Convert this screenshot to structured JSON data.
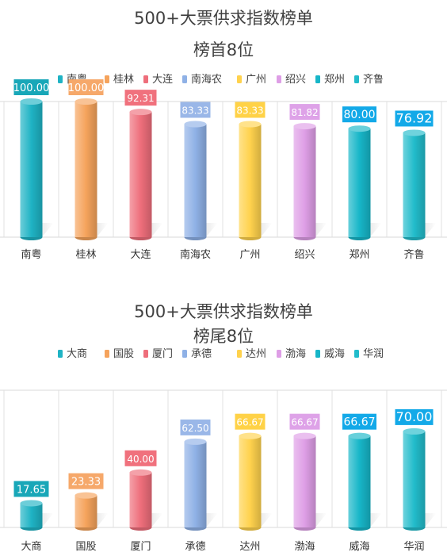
{
  "chart_data": [
    {
      "type": "bar",
      "title": "500+大票供求指数榜单",
      "subtitle": "榜首8位",
      "categories": [
        "南粤",
        "桂林",
        "大连",
        "南海农",
        "广州",
        "绍兴",
        "郑州",
        "齐鲁"
      ],
      "values": [
        100.0,
        100.0,
        92.31,
        83.33,
        83.33,
        81.82,
        80.0,
        76.92
      ],
      "labels": [
        "100.00",
        "100.00",
        "92.31",
        "83.33",
        "83.33",
        "81.82",
        "80.00",
        "76.92"
      ],
      "legend": [
        "南粤",
        "桂林",
        "大连",
        "南海农",
        "广州",
        "绍兴",
        "郑州",
        "齐鲁"
      ],
      "colors": [
        "#1fb3c4",
        "#f5a35c",
        "#ee6e7b",
        "#8fb1e6",
        "#ffd24d",
        "#de9ee6",
        "#17b6c8",
        "#22bccb"
      ],
      "label_colors": [
        "#18a7b8",
        "#f6a86a",
        "#f0717d",
        "#9ab7e8",
        "#ffd247",
        "#dea2e8",
        "#13a9e8",
        "#13a9e8"
      ],
      "ylim": [
        0,
        100
      ],
      "grid": false,
      "legend_position": "top"
    },
    {
      "type": "bar",
      "title": "500+大票供求指数榜单",
      "subtitle": "榜尾8位",
      "categories": [
        "大商",
        "国股",
        "厦门",
        "承德",
        "达州",
        "渤海",
        "威海",
        "华润"
      ],
      "values": [
        17.65,
        23.33,
        40.0,
        62.5,
        66.67,
        66.67,
        66.67,
        70.0
      ],
      "labels": [
        "17.65",
        "23.33",
        "40.00",
        "62.50",
        "66.67",
        "66.67",
        "66.67",
        "70.00"
      ],
      "legend": [
        "大商",
        "国股",
        "厦门",
        "承德",
        "达州",
        "渤海",
        "威海",
        "华润"
      ],
      "colors": [
        "#1fb3c4",
        "#f5a35c",
        "#ee6e7b",
        "#8fb1e6",
        "#ffd24d",
        "#de9ee6",
        "#17b6c8",
        "#22bccb"
      ],
      "label_colors": [
        "#18a7b8",
        "#f6a86a",
        "#f0717d",
        "#9ab7e8",
        "#ffd247",
        "#dea2e8",
        "#13a9e8",
        "#13a9e8"
      ],
      "ylim": [
        0,
        100
      ],
      "grid": false,
      "legend_position": "top"
    }
  ]
}
